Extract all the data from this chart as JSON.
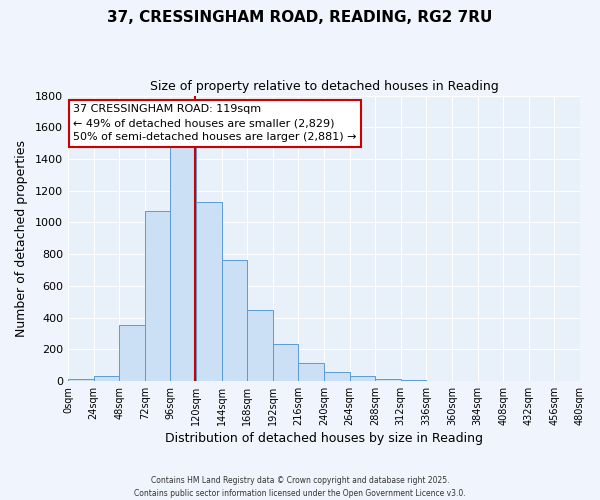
{
  "title": "37, CRESSINGHAM ROAD, READING, RG2 7RU",
  "subtitle": "Size of property relative to detached houses in Reading",
  "xlabel": "Distribution of detached houses by size in Reading",
  "ylabel": "Number of detached properties",
  "bar_color": "#cce0f5",
  "bar_edge_color": "#5b9bd5",
  "background_color": "#e8f0fa",
  "grid_color": "#ffffff",
  "bin_edges": [
    0,
    24,
    48,
    72,
    96,
    120,
    144,
    168,
    192,
    216,
    240,
    264,
    288,
    312,
    336,
    360,
    384,
    408,
    432,
    456,
    480
  ],
  "bin_labels": [
    "0sqm",
    "24sqm",
    "48sqm",
    "72sqm",
    "96sqm",
    "120sqm",
    "144sqm",
    "168sqm",
    "192sqm",
    "216sqm",
    "240sqm",
    "264sqm",
    "288sqm",
    "312sqm",
    "336sqm",
    "360sqm",
    "384sqm",
    "408sqm",
    "432sqm",
    "456sqm",
    "480sqm"
  ],
  "counts": [
    15,
    30,
    355,
    1075,
    1490,
    1130,
    760,
    445,
    230,
    115,
    55,
    30,
    15,
    5,
    0,
    0,
    0,
    0,
    0,
    0
  ],
  "property_size": 119,
  "annotation_title": "37 CRESSINGHAM ROAD: 119sqm",
  "annotation_line1": "← 49% of detached houses are smaller (2,829)",
  "annotation_line2": "50% of semi-detached houses are larger (2,881) →",
  "annotation_box_color": "#ffffff",
  "annotation_border_color": "#cc0000",
  "vline_color": "#cc0000",
  "ylim": [
    0,
    1800
  ],
  "yticks": [
    0,
    200,
    400,
    600,
    800,
    1000,
    1200,
    1400,
    1600,
    1800
  ],
  "footer_line1": "Contains HM Land Registry data © Crown copyright and database right 2025.",
  "footer_line2": "Contains public sector information licensed under the Open Government Licence v3.0.",
  "fig_bg": "#f0f4fc"
}
